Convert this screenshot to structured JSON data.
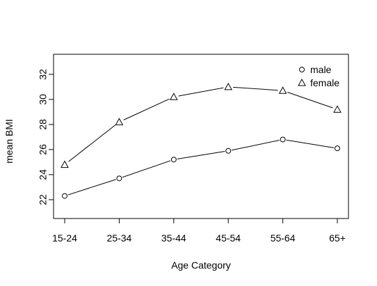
{
  "chart_data": {
    "type": "line",
    "xlabel": "Age Category",
    "ylabel": "mean BMI",
    "categories": [
      "15-24",
      "25-34",
      "35-44",
      "45-54",
      "55-64",
      "65+"
    ],
    "y_ticks": [
      22,
      24,
      26,
      28,
      30,
      32
    ],
    "ylim": [
      20.5,
      33.6
    ],
    "grid": false,
    "legend_position": "top-right",
    "series": [
      {
        "name": "male",
        "marker": "circle",
        "values": [
          22.3,
          23.7,
          25.2,
          25.9,
          26.8,
          26.1
        ]
      },
      {
        "name": "female",
        "marker": "triangle",
        "values": [
          24.8,
          28.2,
          30.2,
          31.0,
          30.7,
          29.2
        ]
      }
    ]
  }
}
